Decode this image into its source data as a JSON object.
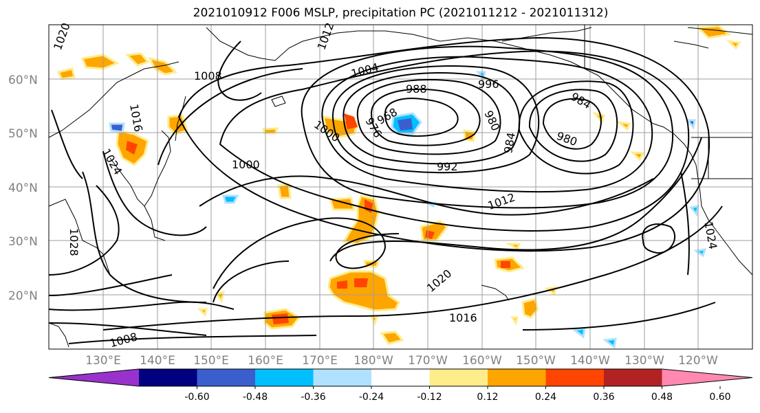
{
  "title": "2021010912 F006 MSLP, precipitation PC (2021011212 - 2021011312)",
  "lat_labels": [
    "60°N",
    "50°N",
    "40°N",
    "30°N",
    "20°N"
  ],
  "lon_labels": [
    "130°E",
    "140°E",
    "150°E",
    "160°E",
    "170°E",
    "180°W",
    "170°W",
    "160°W",
    "150°W",
    "140°W",
    "130°W",
    "120°W"
  ],
  "contour_labels": [
    "1020",
    "1012",
    "1008",
    "1004",
    "996",
    "988",
    "968",
    "976",
    "984",
    "980",
    "1016",
    "1000",
    "1024",
    "1000",
    "992",
    "980",
    "984",
    "1012",
    "1028",
    "1020",
    "1016",
    "1008",
    "1024"
  ],
  "colorbar": {
    "ticks": [
      "-0.60",
      "-0.48",
      "-0.36",
      "-0.24",
      "-0.12",
      "0.12",
      "0.24",
      "0.36",
      "0.48",
      "0.60"
    ],
    "colors": [
      "#9932cc",
      "#000080",
      "#3a5fcd",
      "#00bfff",
      "#b0e2ff",
      "#ffffff",
      "#ffec8b",
      "#ffa500",
      "#ff4500",
      "#b22222",
      "#ff89b0"
    ]
  },
  "colors": {
    "land_outline": "#000000",
    "grid": "#9e9e9e",
    "precip_light": "#ffec8b",
    "precip_mid": "#ffa500",
    "precip_high": "#ff4500",
    "precip_neg": "#00bfff",
    "precip_neg_strong": "#3a5fcd"
  }
}
